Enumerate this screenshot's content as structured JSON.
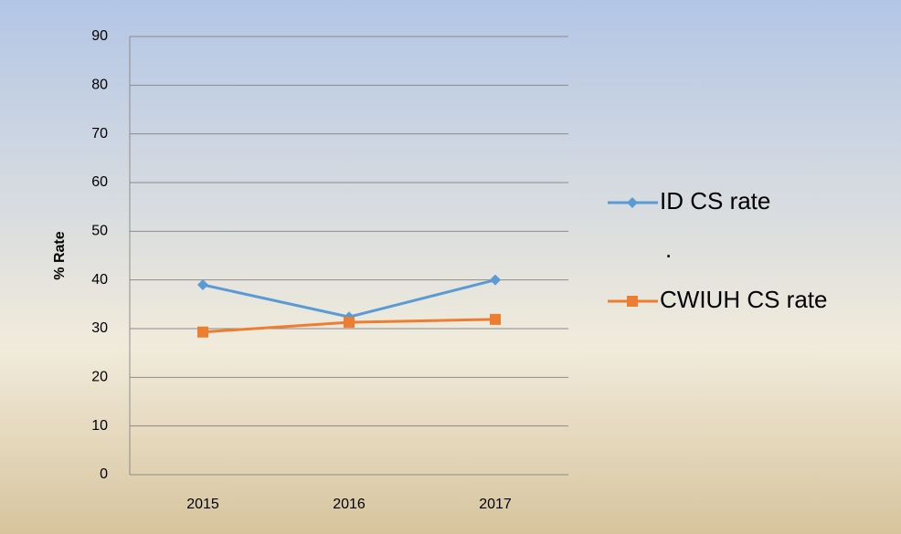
{
  "chart_data": {
    "type": "line",
    "ylabel": "% Rate",
    "categories": [
      "2015",
      "2016",
      "2017"
    ],
    "series": [
      {
        "name": "ID CS rate",
        "color": "#5b9bd5",
        "marker": "diamond",
        "values": [
          39,
          32.4,
          40
        ]
      },
      {
        "name": "CWIUH CS rate",
        "color": "#ed7d31",
        "marker": "square",
        "values": [
          29.3,
          31.3,
          31.9
        ]
      }
    ],
    "legend_annotation": ".",
    "ylim": [
      0,
      90
    ],
    "yticks": [
      0,
      10,
      20,
      30,
      40,
      50,
      60,
      70,
      80,
      90
    ],
    "grid": true,
    "legend": "right"
  }
}
